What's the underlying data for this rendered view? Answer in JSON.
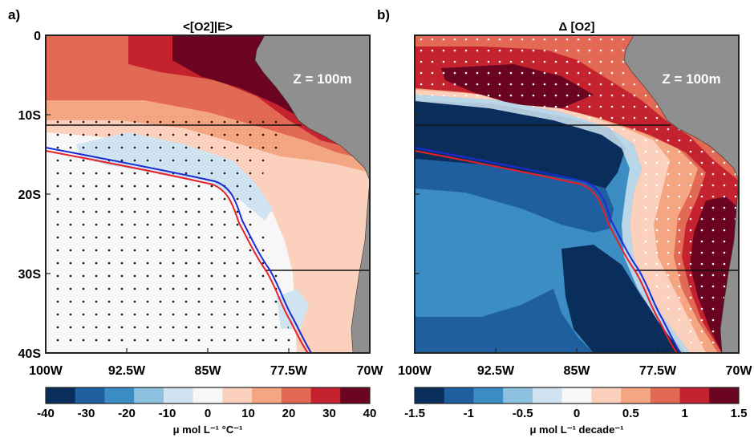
{
  "chart_data": [
    {
      "type": "heatmap",
      "panel_label": "a)",
      "title": "<[O2]|E>",
      "annotation": "Z = 100m",
      "xaxis": {
        "ticks": [
          "100W",
          "92.5W",
          "85W",
          "77.5W",
          "70W"
        ],
        "range": [
          -100,
          -70
        ]
      },
      "yaxis": {
        "ticks": [
          "0",
          "10S",
          "20S",
          "30S",
          "40S"
        ],
        "range": [
          0,
          -40
        ]
      },
      "colorbar": {
        "ticks": [
          "-40",
          "-30",
          "-20",
          "-10",
          "0",
          "10",
          "20",
          "30",
          "40"
        ],
        "label": "μ mol L⁻¹ °C⁻¹",
        "range": [
          -40,
          40
        ],
        "colors": [
          "#0a2e5c",
          "#1f5fa0",
          "#3c8dc4",
          "#8ec1e0",
          "#cfe4f0",
          "#f7f7f7",
          "#fbd0bc",
          "#f4a582",
          "#e26a55",
          "#c4222f",
          "#6b0420"
        ]
      },
      "horizontal_lines_lat": [
        -13.2,
        -30
      ]
    },
    {
      "type": "heatmap",
      "panel_label": "b)",
      "title": "Δ [O2]",
      "annotation": "Z = 100m",
      "xaxis": {
        "ticks": [
          "100W",
          "92.5W",
          "85W",
          "77.5W",
          "70W"
        ],
        "range": [
          -100,
          -70
        ]
      },
      "yaxis": {
        "ticks": [
          "0",
          "10S",
          "20S",
          "30S",
          "40S"
        ],
        "range": [
          0,
          -40
        ]
      },
      "colorbar": {
        "ticks": [
          "-1.5",
          "-1",
          "-0.5",
          "0",
          "0.5",
          "1",
          "1.5"
        ],
        "label": "μ mol L⁻¹ decade⁻¹",
        "range": [
          -1.5,
          1.5
        ],
        "colors": [
          "#0a2e5c",
          "#1f5fa0",
          "#3c8dc4",
          "#8ec1e0",
          "#cfe4f0",
          "#f7f7f7",
          "#fbd0bc",
          "#f4a582",
          "#e26a55",
          "#c4222f",
          "#6b0420"
        ]
      },
      "horizontal_lines_lat": [
        -13.2,
        -30
      ]
    }
  ],
  "colors": {
    "land": "#8f8f8f",
    "line_red": "#e8202a",
    "line_blue": "#1a2bd6",
    "frame": "#222222"
  }
}
